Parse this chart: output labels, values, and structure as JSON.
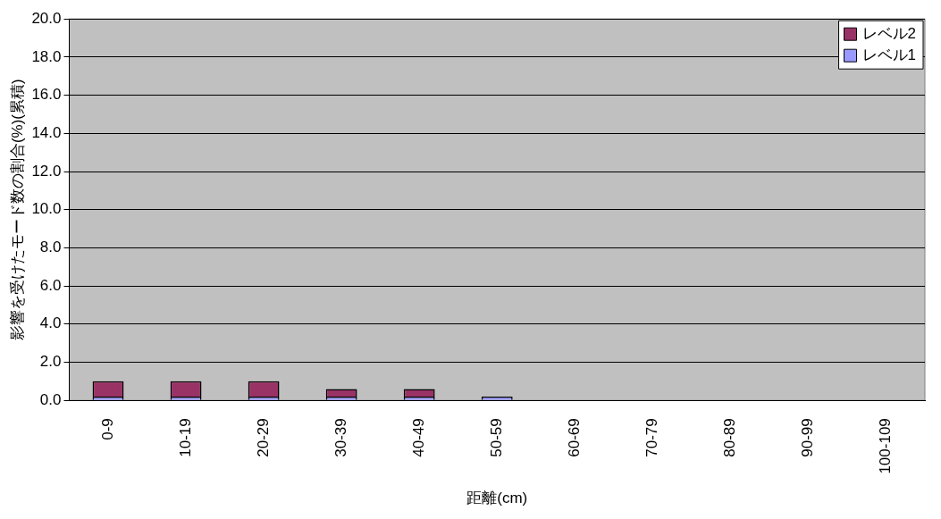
{
  "chart_data": {
    "type": "bar",
    "stacked": true,
    "xlabel": "距離(cm)",
    "ylabel": "影響を受けたモード数の割合(%)(累積)",
    "categories": [
      "0-9",
      "10-19",
      "20-29",
      "30-39",
      "40-49",
      "50-59",
      "60-69",
      "70-79",
      "80-89",
      "90-99",
      "100-109"
    ],
    "series": [
      {
        "name": "レベル1",
        "color": "#9999ff",
        "values": [
          0.2,
          0.2,
          0.2,
          0.2,
          0.2,
          0.2,
          0,
          0,
          0,
          0,
          0
        ]
      },
      {
        "name": "レベル2",
        "color": "#993366",
        "values": [
          0.8,
          0.8,
          0.8,
          0.4,
          0.4,
          0,
          0,
          0,
          0,
          0,
          0
        ]
      }
    ],
    "ylim": [
      0,
      20
    ],
    "yticks": [
      {
        "value": 0,
        "label": "0.0"
      },
      {
        "value": 2,
        "label": "2.0"
      },
      {
        "value": 4,
        "label": "4.0"
      },
      {
        "value": 6,
        "label": "6.0"
      },
      {
        "value": 8,
        "label": "8.0"
      },
      {
        "value": 10,
        "label": "10.0"
      },
      {
        "value": 12,
        "label": "12.0"
      },
      {
        "value": 14,
        "label": "14.0"
      },
      {
        "value": 16,
        "label": "16.0"
      },
      {
        "value": 18,
        "label": "18.0"
      },
      {
        "value": 20,
        "label": "20.0"
      }
    ],
    "grid": "y",
    "legend": "top right"
  }
}
